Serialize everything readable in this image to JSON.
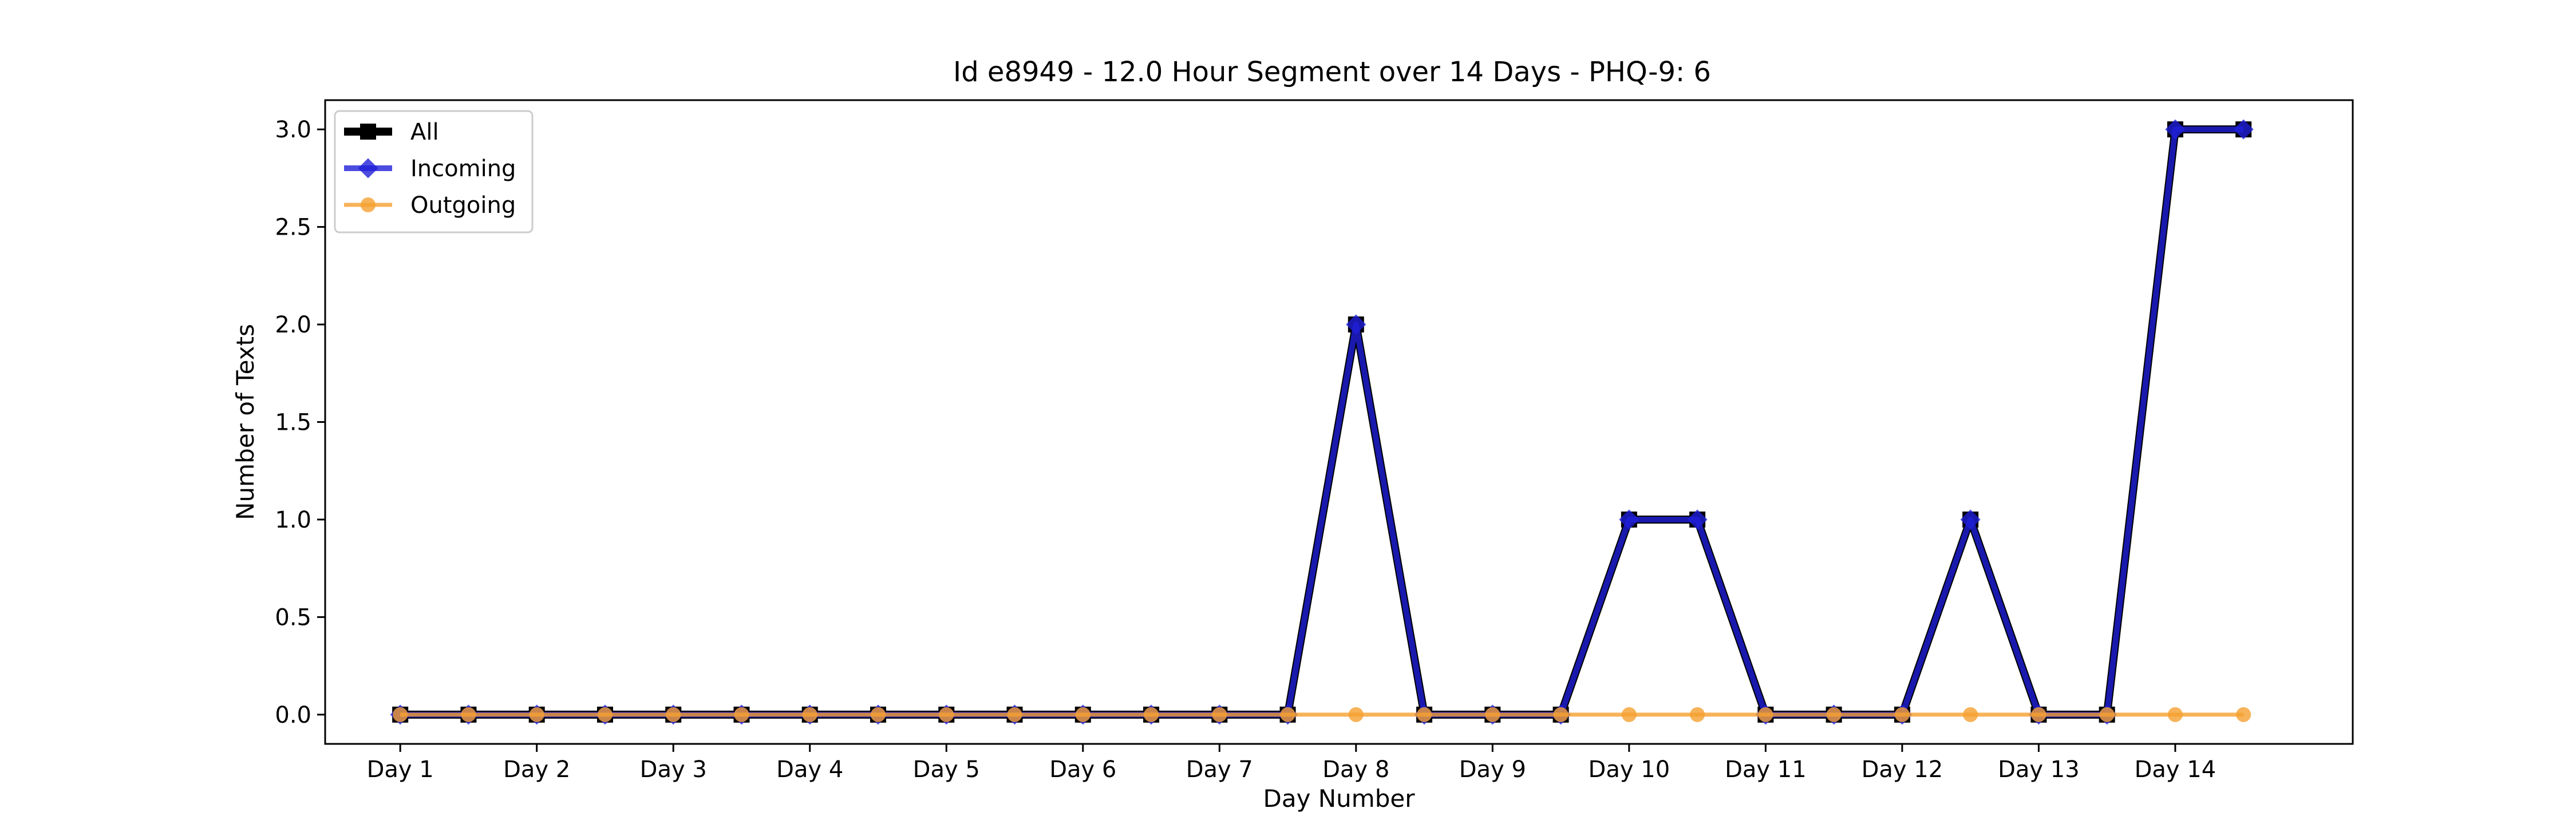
{
  "chart_data": {
    "type": "line",
    "title": "Id e8949 - 12.0 Hour Segment over 14 Days - PHQ-9: 6",
    "xlabel": "Day Number",
    "ylabel": "Number of Texts",
    "x_tick_labels": [
      "Day 1",
      "Day 2",
      "Day 3",
      "Day 4",
      "Day 5",
      "Day 6",
      "Day 7",
      "Day 8",
      "Day 9",
      "Day 10",
      "Day 11",
      "Day 12",
      "Day 13",
      "Day 14"
    ],
    "x_values": [
      1,
      1.5,
      2,
      2.5,
      3,
      3.5,
      4,
      4.5,
      5,
      5.5,
      6,
      6.5,
      7,
      7.5,
      8,
      8.5,
      9,
      9.5,
      10,
      10.5,
      11,
      11.5,
      12,
      12.5,
      13,
      13.5,
      14,
      14.5
    ],
    "xlim": [
      0.45,
      15.3
    ],
    "ylim": [
      -0.15,
      3.15
    ],
    "y_ticks": [
      0.0,
      0.5,
      1.0,
      1.5,
      2.0,
      2.5,
      3.0
    ],
    "grid": false,
    "legend_position": "top-left",
    "series": [
      {
        "name": "All",
        "color": "#000000",
        "marker": "square",
        "values": [
          0,
          0,
          0,
          0,
          0,
          0,
          0,
          0,
          0,
          0,
          0,
          0,
          0,
          0,
          2,
          0,
          0,
          0,
          1,
          1,
          0,
          0,
          0,
          1,
          0,
          0,
          3,
          3
        ]
      },
      {
        "name": "Incoming",
        "color": "#1f1fd8",
        "marker": "diamond",
        "values": [
          0,
          0,
          0,
          0,
          0,
          0,
          0,
          0,
          0,
          0,
          0,
          0,
          0,
          0,
          2,
          0,
          0,
          0,
          1,
          1,
          0,
          0,
          0,
          1,
          0,
          0,
          3,
          3
        ]
      },
      {
        "name": "Outgoing",
        "color": "#f5a02f",
        "marker": "circle",
        "values": [
          0,
          0,
          0,
          0,
          0,
          0,
          0,
          0,
          0,
          0,
          0,
          0,
          0,
          0,
          0,
          0,
          0,
          0,
          0,
          0,
          0,
          0,
          0,
          0,
          0,
          0,
          0,
          0
        ]
      }
    ]
  }
}
